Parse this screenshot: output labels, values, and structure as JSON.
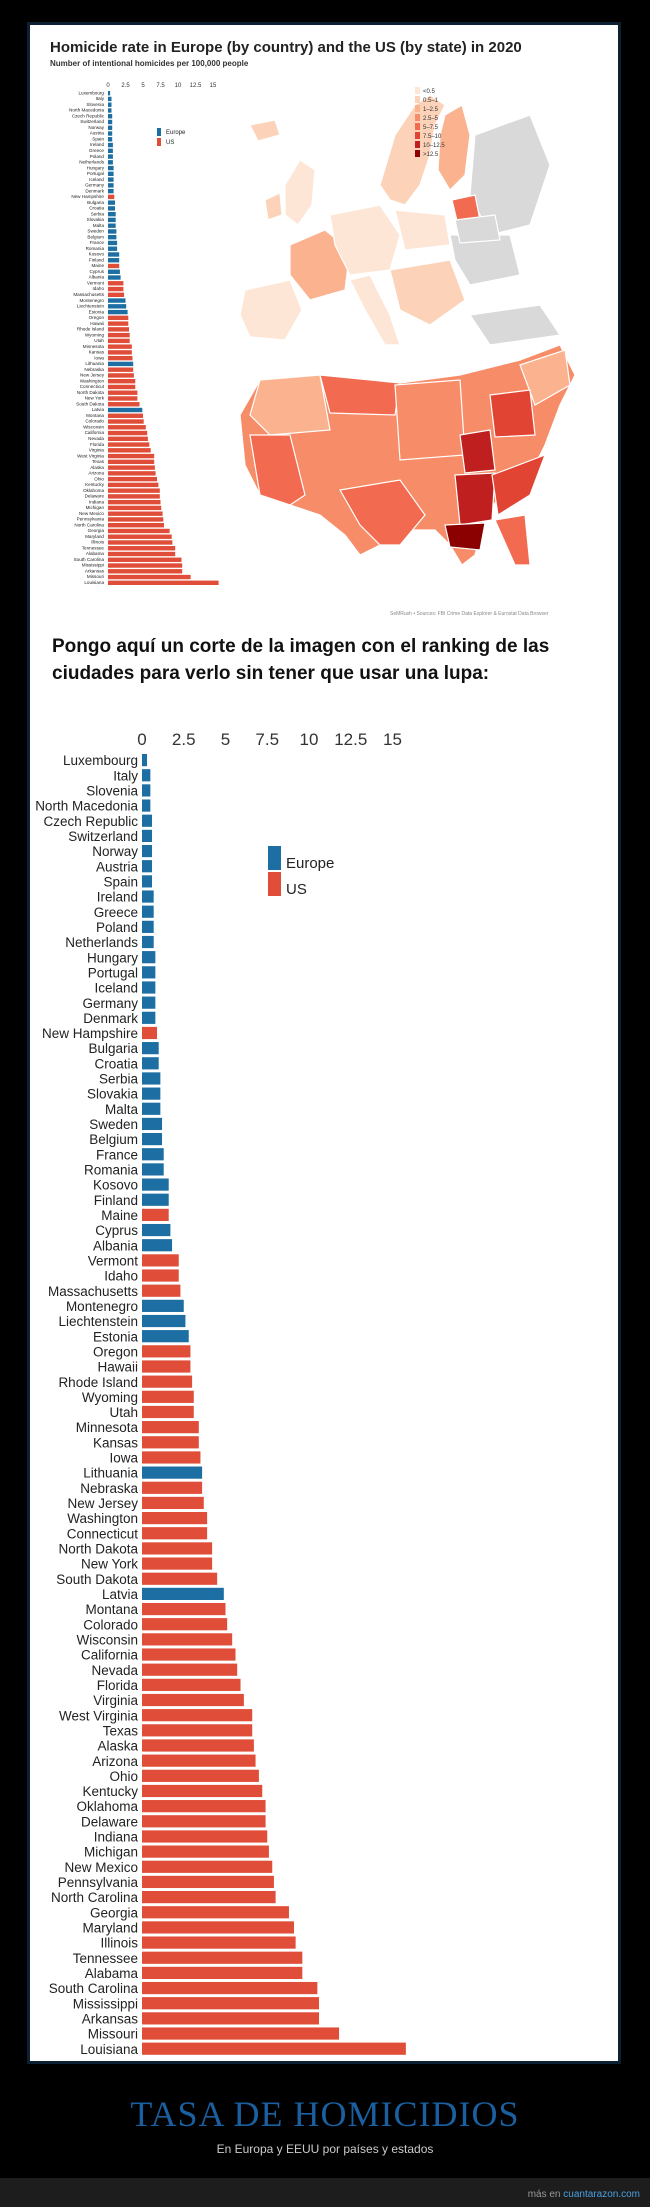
{
  "top": {
    "title": "Homicide rate in Europe (by country) and the US (by state) in 2020",
    "subtitle": "Number of intentional homicides per 100,000 people",
    "credit": "SeMRush • Sources: FBI Crime Data Explorer & Eurostat Data Browser"
  },
  "map_legend": {
    "labels": [
      "<0.5",
      "0.5–1",
      "1–2.5",
      "2.5–5",
      "5–7.5",
      "7.5–10",
      "10–12.5",
      ">12.5"
    ],
    "colors": [
      "#fde6d6",
      "#fcd2b8",
      "#fbb28f",
      "#f78c68",
      "#f26a4f",
      "#e24434",
      "#c01f1f",
      "#8b0000"
    ]
  },
  "spanish_text": "Pongo aquí un corte de la imagen con el ranking de las ciudades para verlo sin tener que usar una lupa:",
  "footer": {
    "title": "TASA DE HOMICIDIOS",
    "subtitle": "En Europa y EEUU por países y estados",
    "credit_prefix": "más en ",
    "credit_link": "cuantarazon.com"
  },
  "colors": {
    "europe": "#1d6fa3",
    "us": "#e04e39"
  },
  "chart_data": {
    "type": "bar",
    "orientation": "horizontal",
    "title": "Homicide rate in Europe (by country) and the US (by state) in 2020",
    "xlabel": "Number of intentional homicides per 100,000 people",
    "xlim": [
      0,
      16
    ],
    "xticks": [
      "0",
      "2.5",
      "5",
      "7.5",
      "10",
      "12.5",
      "15"
    ],
    "xtick_values": [
      0,
      2.5,
      5,
      7.5,
      10,
      12.5,
      15
    ],
    "legend": [
      {
        "name": "Europe",
        "color": "#1d6fa3"
      },
      {
        "name": "US",
        "color": "#e04e39"
      }
    ],
    "legend_position": "top-right",
    "bars": [
      {
        "label": "Luxembourg",
        "group": "Europe",
        "value": 0.3
      },
      {
        "label": "Italy",
        "group": "Europe",
        "value": 0.5
      },
      {
        "label": "Slovenia",
        "group": "Europe",
        "value": 0.5
      },
      {
        "label": "North Macedonia",
        "group": "Europe",
        "value": 0.5
      },
      {
        "label": "Czech Republic",
        "group": "Europe",
        "value": 0.6
      },
      {
        "label": "Switzerland",
        "group": "Europe",
        "value": 0.6
      },
      {
        "label": "Norway",
        "group": "Europe",
        "value": 0.6
      },
      {
        "label": "Austria",
        "group": "Europe",
        "value": 0.6
      },
      {
        "label": "Spain",
        "group": "Europe",
        "value": 0.6
      },
      {
        "label": "Ireland",
        "group": "Europe",
        "value": 0.7
      },
      {
        "label": "Greece",
        "group": "Europe",
        "value": 0.7
      },
      {
        "label": "Poland",
        "group": "Europe",
        "value": 0.7
      },
      {
        "label": "Netherlands",
        "group": "Europe",
        "value": 0.7
      },
      {
        "label": "Hungary",
        "group": "Europe",
        "value": 0.8
      },
      {
        "label": "Portugal",
        "group": "Europe",
        "value": 0.8
      },
      {
        "label": "Iceland",
        "group": "Europe",
        "value": 0.8
      },
      {
        "label": "Germany",
        "group": "Europe",
        "value": 0.8
      },
      {
        "label": "Denmark",
        "group": "Europe",
        "value": 0.8
      },
      {
        "label": "New Hampshire",
        "group": "US",
        "value": 0.9
      },
      {
        "label": "Bulgaria",
        "group": "Europe",
        "value": 1.0
      },
      {
        "label": "Croatia",
        "group": "Europe",
        "value": 1.0
      },
      {
        "label": "Serbia",
        "group": "Europe",
        "value": 1.1
      },
      {
        "label": "Slovakia",
        "group": "Europe",
        "value": 1.1
      },
      {
        "label": "Malta",
        "group": "Europe",
        "value": 1.1
      },
      {
        "label": "Sweden",
        "group": "Europe",
        "value": 1.2
      },
      {
        "label": "Belgium",
        "group": "Europe",
        "value": 1.2
      },
      {
        "label": "France",
        "group": "Europe",
        "value": 1.3
      },
      {
        "label": "Romania",
        "group": "Europe",
        "value": 1.3
      },
      {
        "label": "Kosovo",
        "group": "Europe",
        "value": 1.6
      },
      {
        "label": "Finland",
        "group": "Europe",
        "value": 1.6
      },
      {
        "label": "Maine",
        "group": "US",
        "value": 1.6
      },
      {
        "label": "Cyprus",
        "group": "Europe",
        "value": 1.7
      },
      {
        "label": "Albania",
        "group": "Europe",
        "value": 1.8
      },
      {
        "label": "Vermont",
        "group": "US",
        "value": 2.2
      },
      {
        "label": "Idaho",
        "group": "US",
        "value": 2.2
      },
      {
        "label": "Massachusetts",
        "group": "US",
        "value": 2.3
      },
      {
        "label": "Montenegro",
        "group": "Europe",
        "value": 2.5
      },
      {
        "label": "Liechtenstein",
        "group": "Europe",
        "value": 2.6
      },
      {
        "label": "Estonia",
        "group": "Europe",
        "value": 2.8
      },
      {
        "label": "Oregon",
        "group": "US",
        "value": 2.9
      },
      {
        "label": "Hawaii",
        "group": "US",
        "value": 2.9
      },
      {
        "label": "Rhode Island",
        "group": "US",
        "value": 3.0
      },
      {
        "label": "Wyoming",
        "group": "US",
        "value": 3.1
      },
      {
        "label": "Utah",
        "group": "US",
        "value": 3.1
      },
      {
        "label": "Minnesota",
        "group": "US",
        "value": 3.4
      },
      {
        "label": "Kansas",
        "group": "US",
        "value": 3.4
      },
      {
        "label": "Iowa",
        "group": "US",
        "value": 3.5
      },
      {
        "label": "Lithuania",
        "group": "Europe",
        "value": 3.6
      },
      {
        "label": "Nebraska",
        "group": "US",
        "value": 3.6
      },
      {
        "label": "New Jersey",
        "group": "US",
        "value": 3.7
      },
      {
        "label": "Washington",
        "group": "US",
        "value": 3.9
      },
      {
        "label": "Connecticut",
        "group": "US",
        "value": 3.9
      },
      {
        "label": "North Dakota",
        "group": "US",
        "value": 4.2
      },
      {
        "label": "New York",
        "group": "US",
        "value": 4.2
      },
      {
        "label": "South Dakota",
        "group": "US",
        "value": 4.5
      },
      {
        "label": "Latvia",
        "group": "Europe",
        "value": 4.9
      },
      {
        "label": "Montana",
        "group": "US",
        "value": 5.0
      },
      {
        "label": "Colorado",
        "group": "US",
        "value": 5.1
      },
      {
        "label": "Wisconsin",
        "group": "US",
        "value": 5.4
      },
      {
        "label": "California",
        "group": "US",
        "value": 5.6
      },
      {
        "label": "Nevada",
        "group": "US",
        "value": 5.7
      },
      {
        "label": "Florida",
        "group": "US",
        "value": 5.9
      },
      {
        "label": "Virginia",
        "group": "US",
        "value": 6.1
      },
      {
        "label": "West Virginia",
        "group": "US",
        "value": 6.6
      },
      {
        "label": "Texas",
        "group": "US",
        "value": 6.6
      },
      {
        "label": "Alaska",
        "group": "US",
        "value": 6.7
      },
      {
        "label": "Arizona",
        "group": "US",
        "value": 6.8
      },
      {
        "label": "Ohio",
        "group": "US",
        "value": 7.0
      },
      {
        "label": "Kentucky",
        "group": "US",
        "value": 7.2
      },
      {
        "label": "Oklahoma",
        "group": "US",
        "value": 7.4
      },
      {
        "label": "Delaware",
        "group": "US",
        "value": 7.4
      },
      {
        "label": "Indiana",
        "group": "US",
        "value": 7.5
      },
      {
        "label": "Michigan",
        "group": "US",
        "value": 7.6
      },
      {
        "label": "New Mexico",
        "group": "US",
        "value": 7.8
      },
      {
        "label": "Pennsylvania",
        "group": "US",
        "value": 7.9
      },
      {
        "label": "North Carolina",
        "group": "US",
        "value": 8.0
      },
      {
        "label": "Georgia",
        "group": "US",
        "value": 8.8
      },
      {
        "label": "Maryland",
        "group": "US",
        "value": 9.1
      },
      {
        "label": "Illinois",
        "group": "US",
        "value": 9.2
      },
      {
        "label": "Tennessee",
        "group": "US",
        "value": 9.6
      },
      {
        "label": "Alabama",
        "group": "US",
        "value": 9.6
      },
      {
        "label": "South Carolina",
        "group": "US",
        "value": 10.5
      },
      {
        "label": "Mississippi",
        "group": "US",
        "value": 10.6
      },
      {
        "label": "Arkansas",
        "group": "US",
        "value": 10.6
      },
      {
        "label": "Missouri",
        "group": "US",
        "value": 11.8
      },
      {
        "label": "Louisiana",
        "group": "US",
        "value": 15.8
      }
    ]
  }
}
